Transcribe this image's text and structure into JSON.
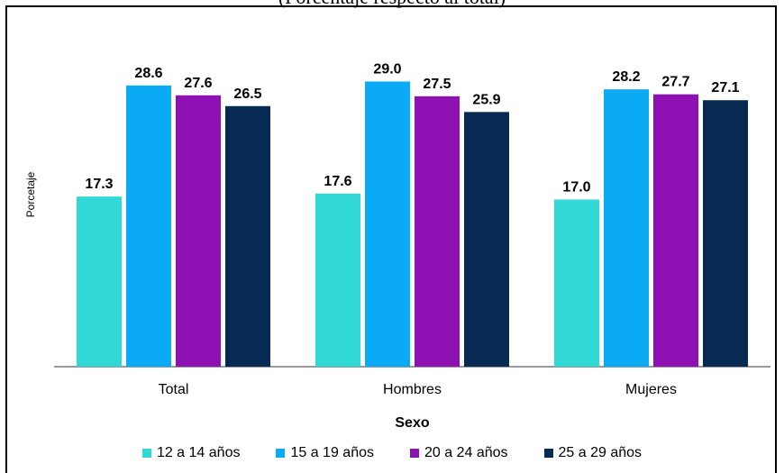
{
  "caption": "(Porcentaje respecto al total)",
  "chart_data": {
    "type": "bar",
    "categories": [
      "Total",
      "Hombres",
      "Mujeres"
    ],
    "series": [
      {
        "name": "12 a 14 años",
        "color": "#31d9d6",
        "values": [
          17.3,
          17.6,
          17.0
        ]
      },
      {
        "name": "15 a 19 años",
        "color": "#0aaaf5",
        "values": [
          28.6,
          29.0,
          28.2
        ]
      },
      {
        "name": "20 a 24 años",
        "color": "#8e12b3",
        "values": [
          27.6,
          27.5,
          27.7
        ]
      },
      {
        "name": "25 a 29 años",
        "color": "#062a52",
        "values": [
          26.5,
          25.9,
          27.1
        ]
      }
    ],
    "xlabel": "Sexo",
    "ylabel": "Porcetaje",
    "ylim": [
      0,
      35
    ],
    "grid": false,
    "legend_position": "bottom"
  }
}
